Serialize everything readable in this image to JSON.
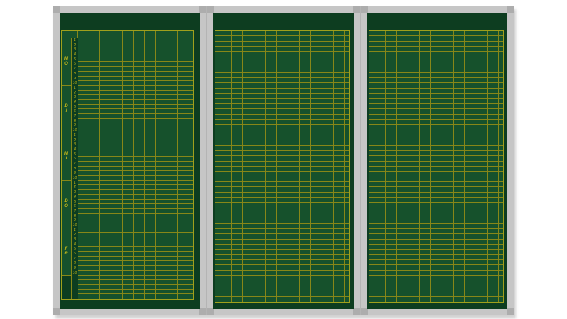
{
  "board": {
    "description": "Empty green weekly timetable wall board with three aluminium-framed panels and yellow grid",
    "colors": {
      "page_bg": "#ffffff",
      "frame": "#c6c6c6",
      "frame_corner": "#adadad",
      "board_green": "#0d3d20",
      "cell_green": "#16512c",
      "grid_line": "#878718",
      "grid_border": "#a0a01c",
      "label_yellow": "#c3b71a"
    },
    "left_panel": {
      "header": {
        "corner_label": "",
        "columns": 10,
        "has_narrow_end_column": true
      },
      "days": [
        {
          "label": "MO",
          "periods": [
            "1",
            "2",
            "3",
            "4",
            "5",
            "6",
            "7",
            "8",
            "9",
            "10"
          ]
        },
        {
          "label": "DI",
          "periods": [
            "1",
            "2",
            "3",
            "4",
            "5",
            "6",
            "7",
            "8",
            "9",
            "10"
          ]
        },
        {
          "label": "MI",
          "periods": [
            "1",
            "2",
            "3",
            "4",
            "5",
            "6",
            "7",
            "8",
            "9",
            "10"
          ]
        },
        {
          "label": "DO",
          "periods": [
            "1",
            "2",
            "3",
            "4",
            "5",
            "6",
            "7",
            "8",
            "9",
            "10"
          ]
        },
        {
          "label": "FR",
          "periods": [
            "1",
            "2",
            "3",
            "4",
            "5",
            "6",
            "7",
            "8",
            "9",
            "10"
          ]
        }
      ],
      "columns": 10,
      "footer_rows": 5
    },
    "plain_panels": [
      {
        "name": "middle",
        "rows": 52,
        "columns": 11,
        "has_narrow_side_columns": true
      },
      {
        "name": "right",
        "rows": 52,
        "columns": 11,
        "has_narrow_side_columns": true
      }
    ]
  }
}
